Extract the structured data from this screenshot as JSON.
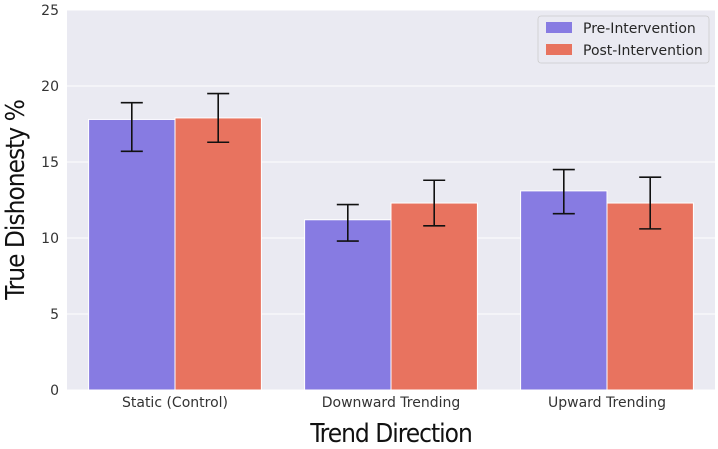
{
  "chart_data": {
    "type": "bar",
    "xlabel": "Trend Direction",
    "ylabel": "True Dishonesty %",
    "ylim": [
      0,
      25
    ],
    "yticks": [
      0,
      5,
      10,
      15,
      20,
      25
    ],
    "grid": true,
    "legend_position": "top-right",
    "categories": [
      "Static (Control)",
      "Downward Trending",
      "Upward Trending"
    ],
    "series": [
      {
        "name": "Pre-Intervention",
        "color": "#877be2",
        "values": [
          17.8,
          11.2,
          13.1
        ],
        "error_low": [
          15.7,
          9.8,
          11.6
        ],
        "error_high": [
          18.9,
          12.2,
          14.5
        ]
      },
      {
        "name": "Post-Intervention",
        "color": "#e8735f",
        "values": [
          17.9,
          12.3,
          12.3
        ],
        "error_low": [
          16.3,
          10.8,
          10.6
        ],
        "error_high": [
          19.5,
          13.8,
          14.0
        ]
      }
    ]
  }
}
